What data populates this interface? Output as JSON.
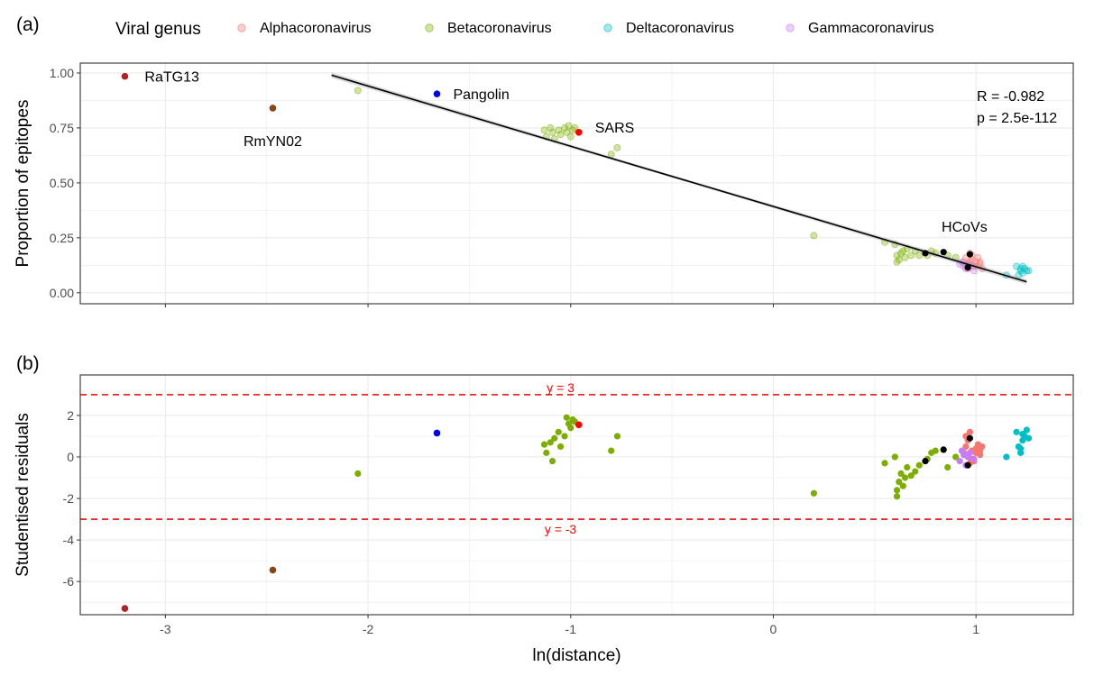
{
  "panel_labels": [
    "(a)",
    "(b)"
  ],
  "legend": {
    "title": "Viral genus",
    "items": [
      {
        "label": "Alphacoronavirus",
        "color": "#F8766D"
      },
      {
        "label": "Betacoronavirus",
        "color": "#7CAE00"
      },
      {
        "label": "Deltacoronavirus",
        "color": "#00BFC4"
      },
      {
        "label": "Gammacoronavirus",
        "color": "#C77CFF"
      }
    ]
  },
  "chart_data": [
    {
      "type": "scatter",
      "panel": "(a)",
      "xlabel": "",
      "ylabel": "Proportion of epitopes",
      "xlim": [
        -3.42,
        1.48
      ],
      "ylim": [
        -0.05,
        1.045
      ],
      "y_ticks": [
        "0.00",
        "0.25",
        "0.50",
        "0.75",
        "1.00"
      ],
      "grid": true,
      "regression_line": {
        "x": [
          -2.18,
          1.25
        ],
        "y": [
          0.99,
          0.05
        ],
        "color": "#000000"
      },
      "stats_text": [
        "R = -0.982",
        "p = 2.5e-112"
      ],
      "highlighted_points": [
        {
          "label": "RaTG13",
          "x": -3.2,
          "y": 0.985,
          "color": "#B22222"
        },
        {
          "label": "RmYN02",
          "x": -2.47,
          "y": 0.84,
          "color": "#8B4513"
        },
        {
          "label": "Pangolin",
          "x": -1.66,
          "y": 0.905,
          "color": "#0000FF"
        },
        {
          "label": "SARS",
          "x": -0.96,
          "y": 0.73,
          "color": "#FF0000"
        },
        {
          "label": "HCoVs",
          "x": 0.97,
          "y": 0.175,
          "color": "#000000"
        }
      ],
      "hcov_points": [
        {
          "x": 0.75,
          "y": 0.18
        },
        {
          "x": 0.84,
          "y": 0.185
        },
        {
          "x": 0.97,
          "y": 0.175
        },
        {
          "x": 0.96,
          "y": 0.115
        }
      ],
      "series": [
        {
          "name": "Alphacoronavirus",
          "color": "#F8766D",
          "points": [
            [
              0.94,
              0.14
            ],
            [
              0.95,
              0.16
            ],
            [
              0.96,
              0.13
            ],
            [
              0.97,
              0.18
            ],
            [
              0.98,
              0.15
            ],
            [
              0.99,
              0.12
            ],
            [
              1.0,
              0.14
            ],
            [
              1.01,
              0.16
            ],
            [
              1.02,
              0.13
            ],
            [
              1.03,
              0.11
            ],
            [
              0.96,
              0.11
            ],
            [
              0.98,
              0.17
            ],
            [
              1.0,
              0.12
            ],
            [
              1.02,
              0.14
            ],
            [
              0.95,
              0.12
            ],
            [
              0.97,
              0.14
            ]
          ]
        },
        {
          "name": "Betacoronavirus",
          "color": "#7CAE00",
          "points": [
            [
              -2.05,
              0.92
            ],
            [
              -1.13,
              0.74
            ],
            [
              -1.12,
              0.71
            ],
            [
              -1.1,
              0.75
            ],
            [
              -1.09,
              0.73
            ],
            [
              -1.08,
              0.7
            ],
            [
              -1.06,
              0.74
            ],
            [
              -1.05,
              0.72
            ],
            [
              -1.03,
              0.75
            ],
            [
              -1.02,
              0.73
            ],
            [
              -1.01,
              0.76
            ],
            [
              -0.99,
              0.74
            ],
            [
              -1.0,
              0.71
            ],
            [
              -0.98,
              0.75
            ],
            [
              -0.8,
              0.63
            ],
            [
              -0.77,
              0.66
            ],
            [
              0.2,
              0.26
            ],
            [
              0.55,
              0.23
            ],
            [
              0.6,
              0.22
            ],
            [
              0.61,
              0.17
            ],
            [
              0.62,
              0.15
            ],
            [
              0.63,
              0.18
            ],
            [
              0.65,
              0.16
            ],
            [
              0.66,
              0.2
            ],
            [
              0.68,
              0.17
            ],
            [
              0.7,
              0.19
            ],
            [
              0.72,
              0.17
            ],
            [
              0.76,
              0.17
            ],
            [
              0.78,
              0.19
            ],
            [
              0.8,
              0.18
            ],
            [
              0.86,
              0.17
            ],
            [
              0.9,
              0.16
            ],
            [
              0.61,
              0.14
            ],
            [
              0.64,
              0.19
            ]
          ]
        },
        {
          "name": "Deltacoronavirus",
          "color": "#00BFC4",
          "points": [
            [
              1.15,
              0.08
            ],
            [
              1.2,
              0.12
            ],
            [
              1.22,
              0.1
            ],
            [
              1.23,
              0.09
            ],
            [
              1.24,
              0.11
            ],
            [
              1.25,
              0.1
            ],
            [
              1.21,
              0.08
            ],
            [
              1.23,
              0.12
            ],
            [
              1.26,
              0.1
            ],
            [
              1.22,
              0.11
            ]
          ]
        },
        {
          "name": "Gammacoronavirus",
          "color": "#C77CFF",
          "points": [
            [
              0.92,
              0.13
            ],
            [
              0.94,
              0.12
            ],
            [
              0.95,
              0.11
            ],
            [
              0.97,
              0.13
            ],
            [
              0.93,
              0.14
            ],
            [
              0.99,
              0.1
            ],
            [
              0.96,
              0.12
            ]
          ]
        }
      ]
    },
    {
      "type": "scatter",
      "panel": "(b)",
      "xlabel": "ln(distance)",
      "ylabel": "Studentised residuals",
      "xlim": [
        -3.42,
        1.48
      ],
      "ylim": [
        -7.6,
        3.95
      ],
      "x_ticks": [
        "-3",
        "-2",
        "-1",
        "0",
        "1"
      ],
      "y_ticks": [
        "-6",
        "-4",
        "-2",
        "0",
        "2"
      ],
      "grid": true,
      "hlines": [
        {
          "y": 3,
          "label": "y = 3",
          "color": "#FF0000"
        },
        {
          "y": -3,
          "label": "y = -3",
          "color": "#FF0000"
        }
      ],
      "highlighted_points": [
        {
          "label": "RaTG13",
          "x": -3.2,
          "y": -7.3,
          "color": "#B22222"
        },
        {
          "label": "RmYN02",
          "x": -2.47,
          "y": -5.45,
          "color": "#8B4513"
        },
        {
          "label": "Pangolin",
          "x": -1.66,
          "y": 1.15,
          "color": "#0000FF"
        },
        {
          "label": "SARS",
          "x": -0.96,
          "y": 1.55,
          "color": "#FF0000"
        }
      ],
      "hcov_points": [
        {
          "x": 0.75,
          "y": -0.2
        },
        {
          "x": 0.84,
          "y": 0.35
        },
        {
          "x": 0.97,
          "y": 0.9
        },
        {
          "x": 0.96,
          "y": -0.4
        }
      ],
      "series": [
        {
          "name": "Alphacoronavirus",
          "color": "#F8766D",
          "points": [
            [
              0.94,
              0.2
            ],
            [
              0.95,
              0.5
            ],
            [
              0.96,
              0.0
            ],
            [
              0.97,
              1.2
            ],
            [
              0.98,
              0.3
            ],
            [
              0.99,
              -0.2
            ],
            [
              1.0,
              0.4
            ],
            [
              1.01,
              0.6
            ],
            [
              1.02,
              0.1
            ],
            [
              1.03,
              0.5
            ],
            [
              0.96,
              0.8
            ],
            [
              0.98,
              -0.1
            ],
            [
              1.0,
              0.2
            ],
            [
              1.02,
              0.3
            ],
            [
              0.95,
              1.0
            ],
            [
              0.97,
              -0.3
            ]
          ]
        },
        {
          "name": "Betacoronavirus",
          "color": "#7CAE00",
          "points": [
            [
              -2.05,
              -0.8
            ],
            [
              -1.13,
              0.6
            ],
            [
              -1.12,
              0.2
            ],
            [
              -1.1,
              0.7
            ],
            [
              -1.09,
              -0.2
            ],
            [
              -1.08,
              0.9
            ],
            [
              -1.06,
              1.2
            ],
            [
              -1.05,
              0.5
            ],
            [
              -1.03,
              1.0
            ],
            [
              -1.02,
              1.9
            ],
            [
              -1.01,
              1.6
            ],
            [
              -0.99,
              1.8
            ],
            [
              -1.0,
              1.4
            ],
            [
              -0.98,
              1.7
            ],
            [
              -0.8,
              0.3
            ],
            [
              -0.77,
              1.0
            ],
            [
              0.2,
              -1.75
            ],
            [
              0.55,
              -0.3
            ],
            [
              0.6,
              0.0
            ],
            [
              0.61,
              -1.9
            ],
            [
              0.62,
              -1.2
            ],
            [
              0.63,
              -0.8
            ],
            [
              0.65,
              -1.0
            ],
            [
              0.66,
              -0.5
            ],
            [
              0.68,
              -0.9
            ],
            [
              0.7,
              -0.7
            ],
            [
              0.72,
              -0.4
            ],
            [
              0.76,
              -0.1
            ],
            [
              0.78,
              0.2
            ],
            [
              0.8,
              0.3
            ],
            [
              0.86,
              -0.5
            ],
            [
              0.9,
              0.0
            ],
            [
              0.61,
              -1.6
            ],
            [
              0.64,
              -1.4
            ]
          ]
        },
        {
          "name": "Deltacoronavirus",
          "color": "#00BFC4",
          "points": [
            [
              1.15,
              0.0
            ],
            [
              1.2,
              1.2
            ],
            [
              1.22,
              0.4
            ],
            [
              1.23,
              0.8
            ],
            [
              1.24,
              1.0
            ],
            [
              1.25,
              1.3
            ],
            [
              1.21,
              0.5
            ],
            [
              1.23,
              1.1
            ],
            [
              1.26,
              0.9
            ],
            [
              1.22,
              0.2
            ]
          ]
        },
        {
          "name": "Gammacoronavirus",
          "color": "#C77CFF",
          "points": [
            [
              0.92,
              -0.2
            ],
            [
              0.94,
              0.1
            ],
            [
              0.95,
              -0.4
            ],
            [
              0.97,
              0.2
            ],
            [
              0.93,
              0.3
            ],
            [
              0.99,
              -0.1
            ],
            [
              0.96,
              0.0
            ]
          ]
        }
      ]
    }
  ]
}
